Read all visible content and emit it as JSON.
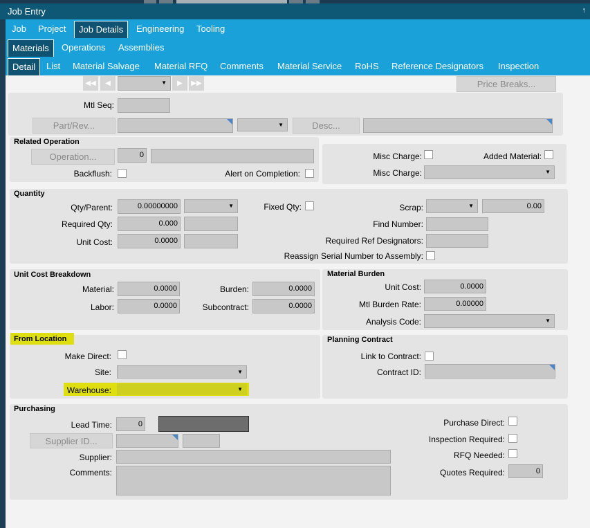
{
  "window": {
    "title": "Job Entry",
    "pin_glyph": "↑"
  },
  "tabs_level1": [
    "Job",
    "Project",
    "Job Details",
    "Engineering",
    "Tooling"
  ],
  "tabs_level2": [
    "Materials",
    "Operations",
    "Assemblies"
  ],
  "tabs_level3": [
    "Detail",
    "List",
    "Material Salvage",
    "Material RFQ",
    "Comments",
    "Material Service",
    "RoHS",
    "Reference Designators",
    "Inspection"
  ],
  "toolbar": {
    "price_breaks": "Price Breaks..."
  },
  "header": {
    "mtl_seq": "Mtl Seq:",
    "part_rev": "Part/Rev...",
    "desc": "Desc..."
  },
  "related_operation": {
    "title": "Related Operation",
    "operation_btn": "Operation...",
    "operation_value": "0",
    "backflush": "Backflush:",
    "alert_on_completion": "Alert on Completion:"
  },
  "misc": {
    "misc_charge_chk": "Misc Charge:",
    "added_material": "Added Material:",
    "misc_charge_dd": "Misc Charge:"
  },
  "quantity": {
    "title": "Quantity",
    "qty_parent": "Qty/Parent:",
    "qty_parent_value": "0.00000000",
    "required_qty": "Required Qty:",
    "required_qty_value": "0.000",
    "unit_cost": "Unit Cost:",
    "unit_cost_value": "0.0000",
    "fixed_qty": "Fixed Qty:",
    "scrap": "Scrap:",
    "scrap_value": "0.00",
    "find_number": "Find Number:",
    "required_ref_designators": "Required Ref Designators:",
    "reassign_serial": "Reassign Serial Number to Assembly:"
  },
  "unit_cost_breakdown": {
    "title": "Unit Cost Breakdown",
    "material": "Material:",
    "material_value": "0.0000",
    "labor": "Labor:",
    "labor_value": "0.0000",
    "burden": "Burden:",
    "burden_value": "0.0000",
    "subcontract": "Subcontract:",
    "subcontract_value": "0.0000"
  },
  "material_burden": {
    "title": "Material Burden",
    "unit_cost": "Unit Cost:",
    "unit_cost_value": "0.0000",
    "mtl_burden_rate": "Mtl  Burden Rate:",
    "mtl_burden_rate_value": "0.00000",
    "analysis_code": "Analysis Code:"
  },
  "from_location": {
    "title": "From Location",
    "make_direct": "Make Direct:",
    "site": "Site:",
    "warehouse": "Warehouse:"
  },
  "planning_contract": {
    "title": "Planning Contract",
    "link_to_contract": "Link to Contract:",
    "contract_id": "Contract ID:"
  },
  "purchasing": {
    "title": "Purchasing",
    "lead_time": "Lead Time:",
    "lead_time_value": "0",
    "supplier_id_btn": "Supplier ID...",
    "supplier": "Supplier:",
    "comments": "Comments:",
    "purchase_direct": "Purchase Direct:",
    "inspection_required": "Inspection  Required:",
    "rfq_needed": "RFQ Needed:",
    "quotes_required": "Quotes Required:",
    "quotes_required_value": "0"
  },
  "colors": {
    "tab_bar": "#1aa1d9",
    "title_bar": "#0e5876",
    "active_tab": "#0f5272",
    "highlight": "#dede10"
  }
}
